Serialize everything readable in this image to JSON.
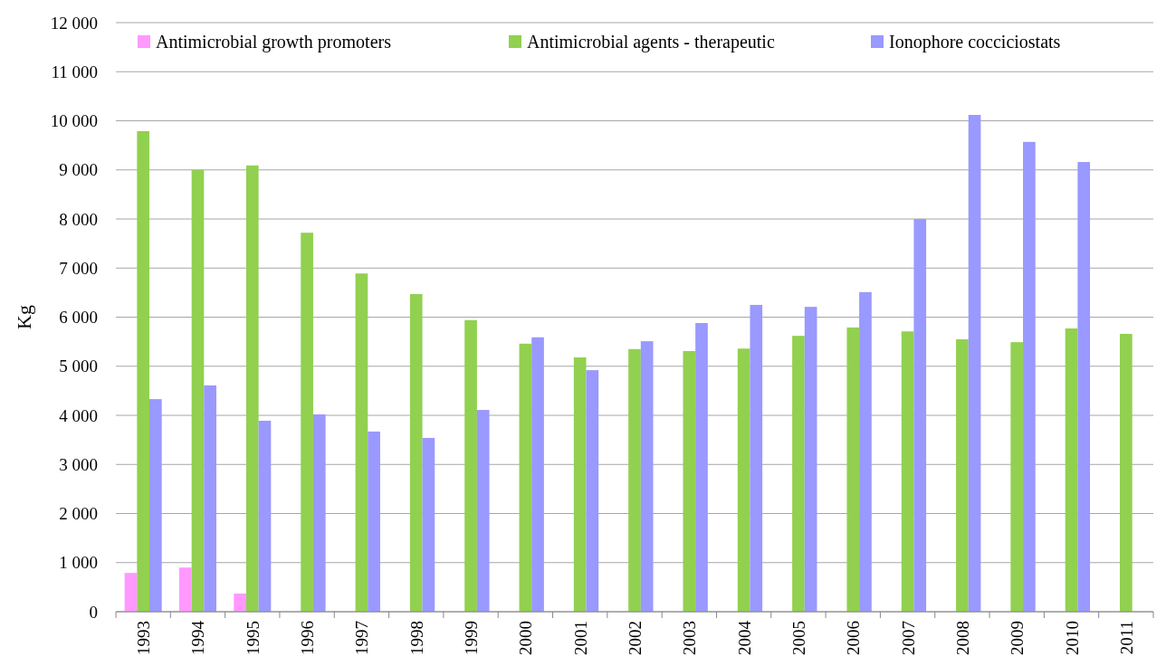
{
  "chart_data": {
    "type": "bar",
    "ylabel": "Kg",
    "categories": [
      "1993",
      "1994",
      "1995",
      "1996",
      "1997",
      "1998",
      "1999",
      "2000",
      "2001",
      "2002",
      "2003",
      "2004",
      "2005",
      "2006",
      "2007",
      "2008",
      "2009",
      "2010",
      "2011"
    ],
    "series": [
      {
        "name": "Antimicrobial growth promoters",
        "color": "#ff99ff",
        "values": [
          790,
          900,
          370,
          null,
          null,
          null,
          null,
          null,
          null,
          null,
          null,
          null,
          null,
          null,
          null,
          null,
          null,
          null,
          null
        ]
      },
      {
        "name": "Antimicrobial agents - therapeutic",
        "color": "#92d050",
        "values": [
          9790,
          9000,
          9090,
          7720,
          6890,
          6470,
          5940,
          5460,
          5180,
          5350,
          5310,
          5360,
          5620,
          5790,
          5710,
          5550,
          5490,
          5770,
          5660
        ]
      },
      {
        "name": "Ionophore cocciciostats",
        "color": "#9999ff",
        "values": [
          4330,
          4610,
          3890,
          4020,
          3670,
          3540,
          4110,
          5590,
          4920,
          5510,
          5880,
          6250,
          6210,
          6510,
          8000,
          10120,
          9570,
          9160,
          null
        ]
      }
    ],
    "ylim": [
      0,
      12000
    ],
    "yticks": [
      {
        "value": 0,
        "label": "0"
      },
      {
        "value": 1000,
        "label": "1 000"
      },
      {
        "value": 2000,
        "label": "2 000"
      },
      {
        "value": 3000,
        "label": "3 000"
      },
      {
        "value": 4000,
        "label": "4 000"
      },
      {
        "value": 5000,
        "label": "5 000"
      },
      {
        "value": 6000,
        "label": "6 000"
      },
      {
        "value": 7000,
        "label": "7 000"
      },
      {
        "value": 8000,
        "label": "8 000"
      },
      {
        "value": 9000,
        "label": "9 000"
      },
      {
        "value": 10000,
        "label": "10 000"
      },
      {
        "value": 11000,
        "label": "11 000"
      },
      {
        "value": 12000,
        "label": "12 000"
      }
    ],
    "grid": "y",
    "legend": "top"
  }
}
